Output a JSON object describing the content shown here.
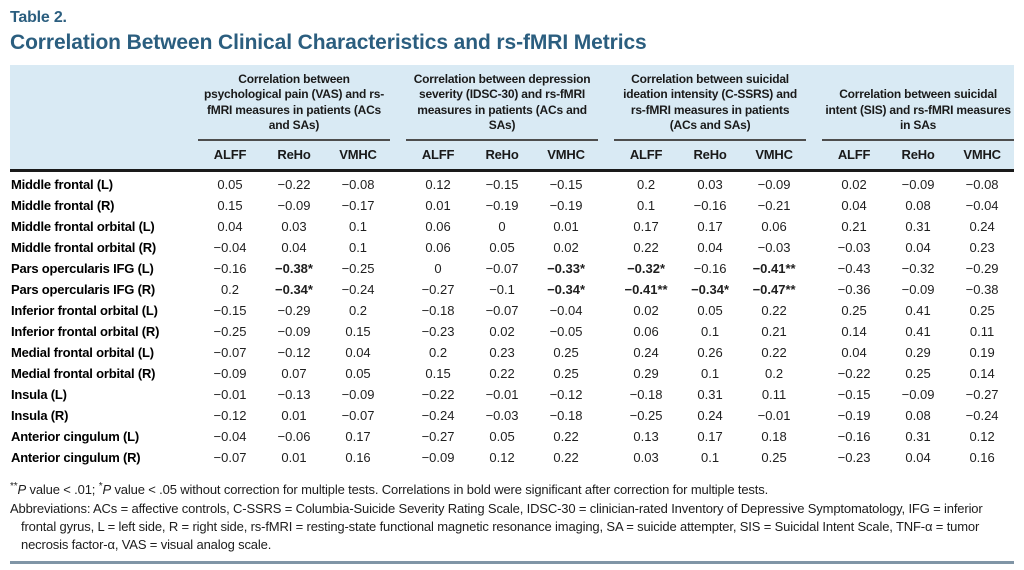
{
  "table_number": "Table 2.",
  "title": "Correlation Between Clinical Characteristics and rs-fMRI Metrics",
  "groups": [
    {
      "title": "Correlation between psychological pain (VAS) and rs-fMRI measures in patients (ACs and SAs)",
      "cols": [
        "ALFF",
        "ReHo",
        "VMHC"
      ]
    },
    {
      "title": "Correlation between depression severity (IDSC-30) and rs-fMRI measures in patients (ACs and SAs)",
      "cols": [
        "ALFF",
        "ReHo",
        "VMHC"
      ]
    },
    {
      "title": "Correlation between suicidal ideation intensity (C-SSRS) and rs-fMRI measures in patients (ACs and SAs)",
      "cols": [
        "ALFF",
        "ReHo",
        "VMHC"
      ]
    },
    {
      "title": "Correlation between suicidal intent (SIS) and rs-fMRI measures in SAs",
      "cols": [
        "ALFF",
        "ReHo",
        "VMHC"
      ]
    }
  ],
  "rows": [
    {
      "label": "Middle frontal (L)",
      "values": [
        "0.05",
        "−0.22",
        "−0.08",
        "0.12",
        "−0.15",
        "−0.15",
        "0.2",
        "0.03",
        "−0.09",
        "0.02",
        "−0.09",
        "−0.08"
      ],
      "bold": []
    },
    {
      "label": "Middle frontal (R)",
      "values": [
        "0.15",
        "−0.09",
        "−0.17",
        "0.01",
        "−0.19",
        "−0.19",
        "0.1",
        "−0.16",
        "−0.21",
        "0.04",
        "0.08",
        "−0.04"
      ],
      "bold": []
    },
    {
      "label": "Middle frontal orbital (L)",
      "values": [
        "0.04",
        "0.03",
        "0.1",
        "0.06",
        "0",
        "0.01",
        "0.17",
        "0.17",
        "0.06",
        "0.21",
        "0.31",
        "0.24"
      ],
      "bold": []
    },
    {
      "label": "Middle frontal orbital (R)",
      "values": [
        "−0.04",
        "0.04",
        "0.1",
        "0.06",
        "0.05",
        "0.02",
        "0.22",
        "0.04",
        "−0.03",
        "−0.03",
        "0.04",
        "0.23"
      ],
      "bold": []
    },
    {
      "label": "Pars opercularis IFG (L)",
      "values": [
        "−0.16",
        "−0.38*",
        "−0.25",
        "0",
        "−0.07",
        "−0.33*",
        "−0.32*",
        "−0.16",
        "−0.41**",
        "−0.43",
        "−0.32",
        "−0.29"
      ],
      "bold": [
        1,
        5,
        6,
        8
      ]
    },
    {
      "label": "Pars opercularis IFG (R)",
      "values": [
        "0.2",
        "−0.34*",
        "−0.24",
        "−0.27",
        "−0.1",
        "−0.34*",
        "−0.41**",
        "−0.34*",
        "−0.47**",
        "−0.36",
        "−0.09",
        "−0.38"
      ],
      "bold": [
        1,
        5,
        6,
        7,
        8
      ]
    },
    {
      "label": "Inferior frontal orbital (L)",
      "values": [
        "−0.15",
        "−0.29",
        "0.2",
        "−0.18",
        "−0.07",
        "−0.04",
        "0.02",
        "0.05",
        "0.22",
        "0.25",
        "0.41",
        "0.25"
      ],
      "bold": []
    },
    {
      "label": "Inferior frontal orbital (R)",
      "values": [
        "−0.25",
        "−0.09",
        "0.15",
        "−0.23",
        "0.02",
        "−0.05",
        "0.06",
        "0.1",
        "0.21",
        "0.14",
        "0.41",
        "0.11"
      ],
      "bold": []
    },
    {
      "label": "Medial frontal orbital (L)",
      "values": [
        "−0.07",
        "−0.12",
        "0.04",
        "0.2",
        "0.23",
        "0.25",
        "0.24",
        "0.26",
        "0.22",
        "0.04",
        "0.29",
        "0.19"
      ],
      "bold": []
    },
    {
      "label": "Medial frontal orbital (R)",
      "values": [
        "−0.09",
        "0.07",
        "0.05",
        "0.15",
        "0.22",
        "0.25",
        "0.29",
        "0.1",
        "0.2",
        "−0.22",
        "0.25",
        "0.14"
      ],
      "bold": []
    },
    {
      "label": "Insula (L)",
      "values": [
        "−0.01",
        "−0.13",
        "−0.09",
        "−0.22",
        "−0.01",
        "−0.12",
        "−0.18",
        "0.31",
        "0.11",
        "−0.15",
        "−0.09",
        "−0.27"
      ],
      "bold": []
    },
    {
      "label": "Insula (R)",
      "values": [
        "−0.12",
        "0.01",
        "−0.07",
        "−0.24",
        "−0.03",
        "−0.18",
        "−0.25",
        "0.24",
        "−0.01",
        "−0.19",
        "0.08",
        "−0.24"
      ],
      "bold": []
    },
    {
      "label": "Anterior cingulum (L)",
      "values": [
        "−0.04",
        "−0.06",
        "0.17",
        "−0.27",
        "0.05",
        "0.22",
        "0.13",
        "0.17",
        "0.18",
        "−0.16",
        "0.31",
        "0.12"
      ],
      "bold": []
    },
    {
      "label": "Anterior cingulum (R)",
      "values": [
        "−0.07",
        "0.01",
        "0.16",
        "−0.09",
        "0.12",
        "0.22",
        "0.03",
        "0.1",
        "0.25",
        "−0.23",
        "0.04",
        "0.16"
      ],
      "bold": []
    }
  ],
  "footnotes": {
    "sig_star1": "**",
    "sig_p1": "P",
    "sig_mid": " value < .01; ",
    "sig_star2": "*",
    "sig_p2": "P",
    "sig_rest": " value < .05 without correction for multiple tests. Correlations in bold were significant after correction for multiple tests.",
    "abbreviations": "Abbreviations: ACs = affective controls, C-SSRS = Columbia-Suicide Severity Rating Scale, IDSC-30 = clinician-rated Inventory of Depressive Symptomatology, IFG = inferior frontal gyrus, L = left side, R = right side, rs-fMRI = resting-state functional magnetic resonance imaging, SA = suicide attempter, SIS = Suicidal Intent Scale, TNF-α = tumor necrosis factor-α, VAS = visual analog scale."
  },
  "colors": {
    "title": "#2b5e7f",
    "header_bg": "#d9eaf4",
    "header_rule": "#1a1a1a",
    "group_underline": "#4d4d4d",
    "bottom_rule": "#8095a6"
  }
}
